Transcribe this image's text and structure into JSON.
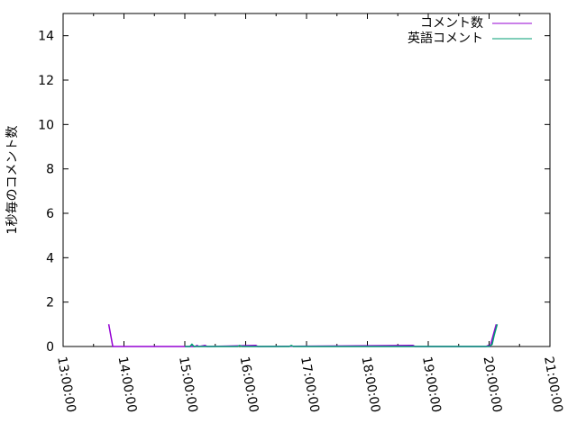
{
  "chart_data": {
    "type": "line",
    "title": "",
    "xlabel": "",
    "ylabel": "1秒毎のコメント数",
    "xlim": [
      "13:00:00",
      "21:00:00"
    ],
    "ylim": [
      0,
      15
    ],
    "x_ticks": [
      "13:00:00",
      "14:00:00",
      "15:00:00",
      "16:00:00",
      "17:00:00",
      "18:00:00",
      "19:00:00",
      "20:00:00",
      "21:00:00"
    ],
    "y_ticks": [
      "0",
      "2",
      "4",
      "6",
      "8",
      "10",
      "12",
      "14"
    ],
    "grid": false,
    "legend_position": "top-right",
    "series": [
      {
        "name": "コメント数",
        "color": "#9400d3",
        "points": [
          [
            "13:45:00",
            1
          ],
          [
            "13:49:00",
            0
          ],
          [
            "15:10:00",
            0
          ],
          [
            "15:12:00",
            0.05
          ],
          [
            "15:14:00",
            0
          ],
          [
            "15:20:00",
            0.05
          ],
          [
            "15:22:00",
            0
          ],
          [
            "16:10:00",
            0.05
          ],
          [
            "16:12:00",
            0
          ],
          [
            "18:45:00",
            0.05
          ],
          [
            "18:47:00",
            0
          ],
          [
            "19:57:00",
            0
          ],
          [
            "19:59:00",
            0.05
          ],
          [
            "20:01:00",
            0
          ],
          [
            "20:07:00",
            1
          ]
        ]
      },
      {
        "name": "英語コメント",
        "color": "#009e73",
        "points": [
          [
            "15:00:00",
            0
          ],
          [
            "15:05:00",
            0
          ],
          [
            "15:07:00",
            0.1
          ],
          [
            "15:09:00",
            0
          ],
          [
            "15:52:00",
            0
          ],
          [
            "15:54:00",
            0.05
          ],
          [
            "15:56:00",
            0
          ],
          [
            "16:43:00",
            0
          ],
          [
            "16:45:00",
            0.05
          ],
          [
            "16:47:00",
            0
          ],
          [
            "20:00:00",
            0
          ],
          [
            "20:03:00",
            0.1
          ],
          [
            "20:05:00",
            0.5
          ],
          [
            "20:08:00",
            1
          ]
        ]
      }
    ]
  }
}
